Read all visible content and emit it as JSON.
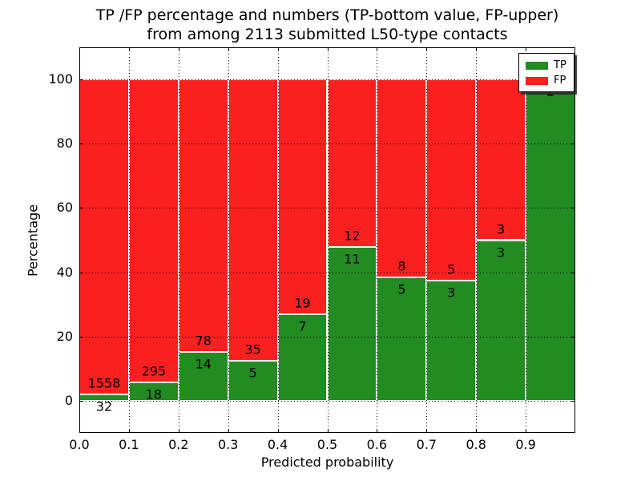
{
  "chart_data": {
    "type": "bar",
    "stacked": true,
    "normalized": "each bin scaled to 100%",
    "title_line1": "TP /FP percentage and numbers (TP-bottom value, FP-upper)",
    "title_line2": "from among 2113 submitted L50-type contacts",
    "total_contacts": 2113,
    "xlabel": "Predicted probability",
    "ylabel": "Percentage",
    "xlim": [
      0.0,
      1.0
    ],
    "ylim": [
      -10,
      110
    ],
    "x_tick_values": [
      0.0,
      0.1,
      0.2,
      0.3,
      0.4,
      0.5,
      0.6,
      0.7,
      0.8,
      0.9
    ],
    "x_tick_labels": [
      "0.0",
      "0.1",
      "0.2",
      "0.3",
      "0.4",
      "0.5",
      "0.6",
      "0.7",
      "0.8",
      "0.9"
    ],
    "y_tick_values": [
      0,
      20,
      40,
      60,
      80,
      100
    ],
    "y_tick_labels": [
      "0",
      "20",
      "40",
      "60",
      "80",
      "100"
    ],
    "grid": {
      "style": "dotted",
      "color": "#000000",
      "axes": "both"
    },
    "bar_edge_color": "#ffffff",
    "colors": {
      "tp": "#228b22",
      "fp": "#fa2020"
    },
    "legend": {
      "position": "upper right",
      "entries": [
        {
          "label": "TP",
          "color": "#228b22"
        },
        {
          "label": "FP",
          "color": "#fa2020"
        }
      ]
    },
    "bins": [
      {
        "x0": 0.0,
        "x1": 0.1,
        "tp": 32,
        "fp": 1558
      },
      {
        "x0": 0.1,
        "x1": 0.2,
        "tp": 18,
        "fp": 295
      },
      {
        "x0": 0.2,
        "x1": 0.3,
        "tp": 14,
        "fp": 78
      },
      {
        "x0": 0.3,
        "x1": 0.4,
        "tp": 5,
        "fp": 35
      },
      {
        "x0": 0.4,
        "x1": 0.5,
        "tp": 7,
        "fp": 19
      },
      {
        "x0": 0.5,
        "x1": 0.6,
        "tp": 11,
        "fp": 12
      },
      {
        "x0": 0.6,
        "x1": 0.7,
        "tp": 5,
        "fp": 8
      },
      {
        "x0": 0.7,
        "x1": 0.8,
        "tp": 3,
        "fp": 5
      },
      {
        "x0": 0.8,
        "x1": 0.9,
        "tp": 3,
        "fp": 3
      },
      {
        "x0": 0.9,
        "x1": 1.0,
        "tp": 2,
        "fp": 0
      }
    ]
  }
}
